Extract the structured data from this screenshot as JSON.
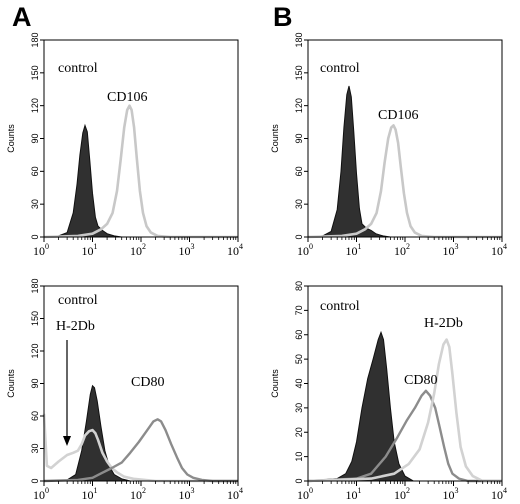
{
  "panels": [
    "A",
    "B"
  ],
  "tick_sup": [
    "0",
    "1",
    "2",
    "3",
    "4"
  ],
  "chart_data": [
    {
      "type": "area",
      "id": "A-top",
      "panel": "A",
      "ylabel": "Counts",
      "x_scale": "log",
      "xlim": [
        1,
        10000
      ],
      "ylim": [
        0,
        180
      ],
      "yticks": [
        "0",
        "30",
        "60",
        "90",
        "120",
        "150",
        "180"
      ],
      "annotations": [
        "control",
        "CD106"
      ],
      "series": [
        {
          "label_ref": "control",
          "style": "filled-dark",
          "color": "#303030",
          "points": [
            [
              1,
              0
            ],
            [
              2,
              1
            ],
            [
              3,
              4
            ],
            [
              4,
              22
            ],
            [
              4.8,
              48
            ],
            [
              5.5,
              75
            ],
            [
              6.3,
              95
            ],
            [
              7,
              102
            ],
            [
              7.8,
              96
            ],
            [
              8.8,
              70
            ],
            [
              10,
              40
            ],
            [
              11.5,
              18
            ],
            [
              13,
              10
            ],
            [
              16,
              6
            ],
            [
              20,
              3
            ],
            [
              28,
              1
            ],
            [
              40,
              0
            ],
            [
              10000,
              0
            ]
          ]
        },
        {
          "label_ref": "CD106",
          "style": "line-light",
          "color": "#c8c8c8",
          "points": [
            [
              1,
              0
            ],
            [
              5,
              1
            ],
            [
              10,
              3
            ],
            [
              15,
              7
            ],
            [
              20,
              12
            ],
            [
              26,
              22
            ],
            [
              32,
              42
            ],
            [
              38,
              70
            ],
            [
              45,
              100
            ],
            [
              52,
              116
            ],
            [
              58,
              120
            ],
            [
              64,
              116
            ],
            [
              72,
              100
            ],
            [
              82,
              72
            ],
            [
              95,
              42
            ],
            [
              110,
              22
            ],
            [
              130,
              10
            ],
            [
              160,
              4
            ],
            [
              220,
              1
            ],
            [
              400,
              0
            ],
            [
              10000,
              0
            ]
          ]
        }
      ]
    },
    {
      "type": "area",
      "id": "B-top",
      "panel": "B",
      "ylabel": "Counts",
      "x_scale": "log",
      "xlim": [
        1,
        10000
      ],
      "ylim": [
        0,
        180
      ],
      "yticks": [
        "0",
        "30",
        "60",
        "90",
        "120",
        "150",
        "180"
      ],
      "annotations": [
        "control",
        "CD106"
      ],
      "series": [
        {
          "label_ref": "control",
          "style": "filled-dark",
          "color": "#303030",
          "points": [
            [
              1,
              0
            ],
            [
              2,
              1
            ],
            [
              3,
              5
            ],
            [
              4,
              25
            ],
            [
              4.8,
              60
            ],
            [
              5.5,
              100
            ],
            [
              6.3,
              130
            ],
            [
              7,
              138
            ],
            [
              7.8,
              128
            ],
            [
              8.8,
              96
            ],
            [
              10,
              58
            ],
            [
              11.5,
              26
            ],
            [
              13,
              12
            ],
            [
              16,
              8
            ],
            [
              20,
              6
            ],
            [
              25,
              3
            ],
            [
              35,
              1
            ],
            [
              50,
              0
            ],
            [
              10000,
              0
            ]
          ]
        },
        {
          "label_ref": "CD106",
          "style": "line-light",
          "color": "#c8c8c8",
          "points": [
            [
              1,
              0
            ],
            [
              5,
              1
            ],
            [
              10,
              3
            ],
            [
              15,
              7
            ],
            [
              20,
              12
            ],
            [
              26,
              22
            ],
            [
              32,
              42
            ],
            [
              38,
              68
            ],
            [
              45,
              90
            ],
            [
              52,
              100
            ],
            [
              58,
              102
            ],
            [
              64,
              98
            ],
            [
              72,
              86
            ],
            [
              82,
              64
            ],
            [
              95,
              40
            ],
            [
              110,
              22
            ],
            [
              130,
              10
            ],
            [
              160,
              4
            ],
            [
              220,
              1
            ],
            [
              400,
              0
            ],
            [
              10000,
              0
            ]
          ]
        }
      ]
    },
    {
      "type": "area",
      "id": "A-bottom",
      "panel": "A",
      "ylabel": "Counts",
      "x_scale": "log",
      "xlim": [
        1,
        10000
      ],
      "ylim": [
        0,
        180
      ],
      "yticks": [
        "0",
        "30",
        "60",
        "90",
        "120",
        "150",
        "180"
      ],
      "annotations": [
        "control",
        "H-2Db",
        "CD80"
      ],
      "series": [
        {
          "label_ref": "control",
          "style": "filled-dark",
          "color": "#303030",
          "points": [
            [
              1,
              0
            ],
            [
              3,
              1
            ],
            [
              4.5,
              6
            ],
            [
              6,
              28
            ],
            [
              7.5,
              55
            ],
            [
              9,
              80
            ],
            [
              10,
              88
            ],
            [
              11,
              86
            ],
            [
              12.5,
              74
            ],
            [
              15,
              50
            ],
            [
              18,
              28
            ],
            [
              22,
              14
            ],
            [
              28,
              6
            ],
            [
              40,
              2
            ],
            [
              60,
              0
            ],
            [
              10000,
              0
            ]
          ]
        },
        {
          "label_ref": "H-2Db",
          "style": "line-light",
          "color": "#d2d2d2",
          "points": [
            [
              1,
              62
            ],
            [
              1.15,
              14
            ],
            [
              1.4,
              12
            ],
            [
              2,
              18
            ],
            [
              3,
              24
            ],
            [
              4,
              26
            ],
            [
              5,
              28
            ],
            [
              6,
              34
            ],
            [
              7,
              42
            ],
            [
              8.5,
              46
            ],
            [
              10,
              47
            ],
            [
              11.5,
              44
            ],
            [
              13,
              38
            ],
            [
              16,
              26
            ],
            [
              20,
              18
            ],
            [
              25,
              12
            ],
            [
              32,
              8
            ],
            [
              45,
              4
            ],
            [
              70,
              2
            ],
            [
              120,
              1
            ],
            [
              200,
              0
            ],
            [
              10000,
              0
            ]
          ]
        },
        {
          "label_ref": "CD80",
          "style": "line-mid",
          "color": "#8c8c8c",
          "points": [
            [
              1,
              0
            ],
            [
              5,
              1
            ],
            [
              10,
              3
            ],
            [
              15,
              7
            ],
            [
              25,
              12
            ],
            [
              40,
              17
            ],
            [
              60,
              26
            ],
            [
              90,
              36
            ],
            [
              130,
              46
            ],
            [
              180,
              55
            ],
            [
              220,
              57
            ],
            [
              260,
              55
            ],
            [
              320,
              47
            ],
            [
              420,
              34
            ],
            [
              550,
              22
            ],
            [
              700,
              12
            ],
            [
              900,
              6
            ],
            [
              1200,
              3
            ],
            [
              1800,
              1
            ],
            [
              3000,
              0
            ],
            [
              10000,
              0
            ]
          ]
        }
      ]
    },
    {
      "type": "area",
      "id": "B-bottom",
      "panel": "B",
      "ylabel": "Counts",
      "x_scale": "log",
      "xlim": [
        1,
        10000
      ],
      "ylim": [
        0,
        80
      ],
      "yticks": [
        "0",
        "10",
        "20",
        "30",
        "40",
        "50",
        "60",
        "70",
        "80"
      ],
      "annotations": [
        "control",
        "H-2Db",
        "CD80"
      ],
      "series": [
        {
          "label_ref": "control",
          "style": "filled-dark",
          "color": "#303030",
          "points": [
            [
              1,
              0
            ],
            [
              4,
              1
            ],
            [
              6,
              3
            ],
            [
              8,
              8
            ],
            [
              10,
              16
            ],
            [
              13,
              30
            ],
            [
              17,
              42
            ],
            [
              22,
              50
            ],
            [
              28,
              58
            ],
            [
              32,
              61
            ],
            [
              36,
              58
            ],
            [
              42,
              46
            ],
            [
              50,
              30
            ],
            [
              60,
              16
            ],
            [
              75,
              7
            ],
            [
              100,
              2
            ],
            [
              150,
              0
            ],
            [
              10000,
              0
            ]
          ]
        },
        {
          "label_ref": "CD80",
          "style": "line-mid",
          "color": "#8c8c8c",
          "points": [
            [
              1,
              0
            ],
            [
              10,
              1
            ],
            [
              20,
              3
            ],
            [
              40,
              10
            ],
            [
              70,
              18
            ],
            [
              110,
              25
            ],
            [
              160,
              30
            ],
            [
              220,
              35
            ],
            [
              270,
              37
            ],
            [
              330,
              35
            ],
            [
              420,
              30
            ],
            [
              520,
              22
            ],
            [
              640,
              14
            ],
            [
              780,
              7
            ],
            [
              950,
              3
            ],
            [
              1300,
              1
            ],
            [
              2000,
              0
            ],
            [
              10000,
              0
            ]
          ]
        },
        {
          "label_ref": "H-2Db",
          "style": "line-light",
          "color": "#d2d2d2",
          "points": [
            [
              1,
              0
            ],
            [
              20,
              1
            ],
            [
              60,
              3
            ],
            [
              120,
              7
            ],
            [
              200,
              13
            ],
            [
              300,
              24
            ],
            [
              400,
              36
            ],
            [
              500,
              48
            ],
            [
              620,
              56
            ],
            [
              720,
              58
            ],
            [
              820,
              55
            ],
            [
              950,
              44
            ],
            [
              1150,
              28
            ],
            [
              1400,
              14
            ],
            [
              1800,
              6
            ],
            [
              2500,
              2
            ],
            [
              4000,
              0
            ],
            [
              10000,
              0
            ]
          ]
        }
      ]
    }
  ]
}
